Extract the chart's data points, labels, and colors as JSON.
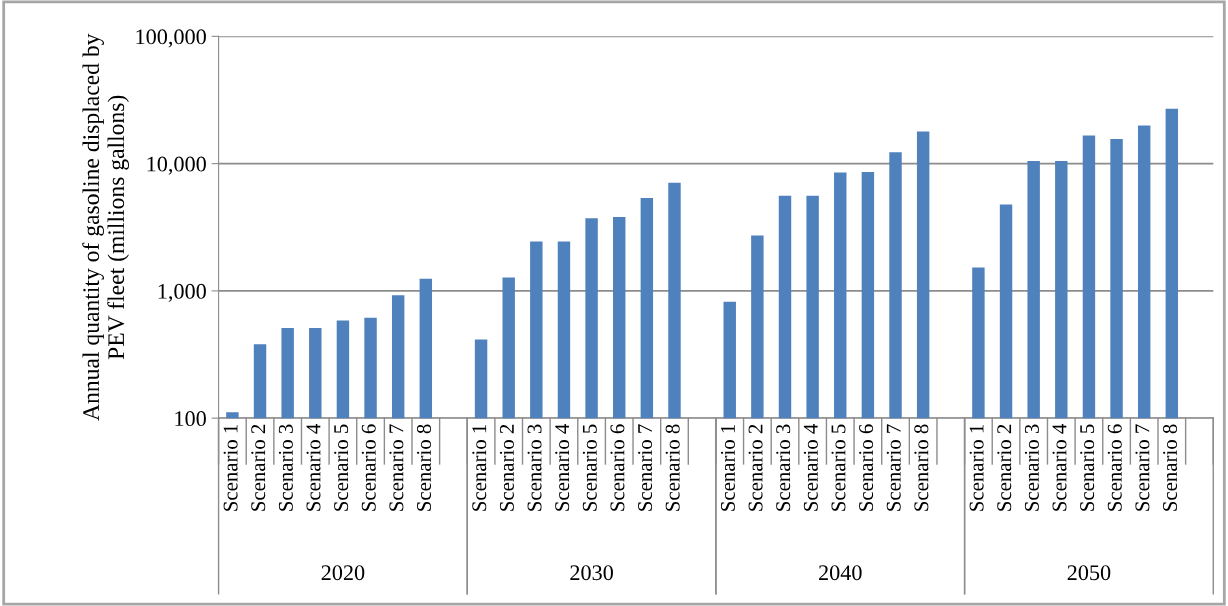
{
  "chart_data": {
    "type": "bar",
    "ylabel": "Annual quantity of gasoline displaced by\nPEV fleet (millions gallons)",
    "categories": [
      "Scenario 1",
      "Scenario 2",
      "Scenario 3",
      "Scenario 4",
      "Scenario 5",
      "Scenario 6",
      "Scenario 7",
      "Scenario 8",
      null,
      "Scenario 1",
      "Scenario 2",
      "Scenario 3",
      "Scenario 4",
      "Scenario 5",
      "Scenario 6",
      "Scenario 7",
      "Scenario 8",
      null,
      "Scenario 1",
      "Scenario 2",
      "Scenario 3",
      "Scenario 4",
      "Scenario 5",
      "Scenario 6",
      "Scenario 7",
      "Scenario 8",
      null,
      "Scenario 1",
      "Scenario 2",
      "Scenario 3",
      "Scenario 4",
      "Scenario 5",
      "Scenario 6",
      "Scenario 7",
      "Scenario 8",
      null
    ],
    "values": [
      111,
      381,
      511,
      511,
      585,
      614,
      925,
      1243,
      null,
      415,
      1274,
      2443,
      2443,
      3715,
      3800,
      5370,
      7080,
      null,
      820,
      2725,
      5600,
      5600,
      8510,
      8610,
      12300,
      17900,
      null,
      1530,
      4780,
      10500,
      10500,
      16600,
      15600,
      19900,
      27000,
      null
    ],
    "color": "#4f81bd",
    "annotations": [
      "2020",
      "2030",
      "2040",
      "2050"
    ],
    "log": true,
    "ylim": [
      100,
      100000
    ],
    "yticks": [
      {
        "value": 100,
        "label": "100"
      },
      {
        "value": 1000,
        "label": "1,000"
      },
      {
        "value": 10000,
        "label": "10,000"
      },
      {
        "value": 100000,
        "label": "100,000"
      }
    ],
    "grid": "y"
  }
}
